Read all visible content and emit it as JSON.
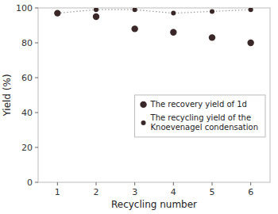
{
  "chart_data": {
    "type": "scatter",
    "x_label": "Recycling number",
    "y_label": "Yield (%)",
    "x": [
      1,
      2,
      3,
      4,
      5,
      6
    ],
    "series": [
      {
        "name": "The recovery yield of 1d",
        "type": "scatter",
        "marker": "circle",
        "color": "#3a2828",
        "values": [
          97,
          95,
          88,
          86,
          83,
          80
        ]
      },
      {
        "name": "The recycling yield of the\nKnoevenagel condensation",
        "type": "line",
        "marker": "circle",
        "line_style": "dotted",
        "color": "#3a2828",
        "values": [
          97,
          99,
          99,
          97,
          98,
          99
        ]
      }
    ],
    "xlim": [
      0.5,
      6.5
    ],
    "xticks": [
      1,
      2,
      3,
      4,
      5,
      6
    ],
    "ylim": [
      0,
      100
    ],
    "yticks": [
      0,
      20,
      40,
      60,
      80,
      100
    ],
    "grid": false,
    "legend": "right"
  }
}
